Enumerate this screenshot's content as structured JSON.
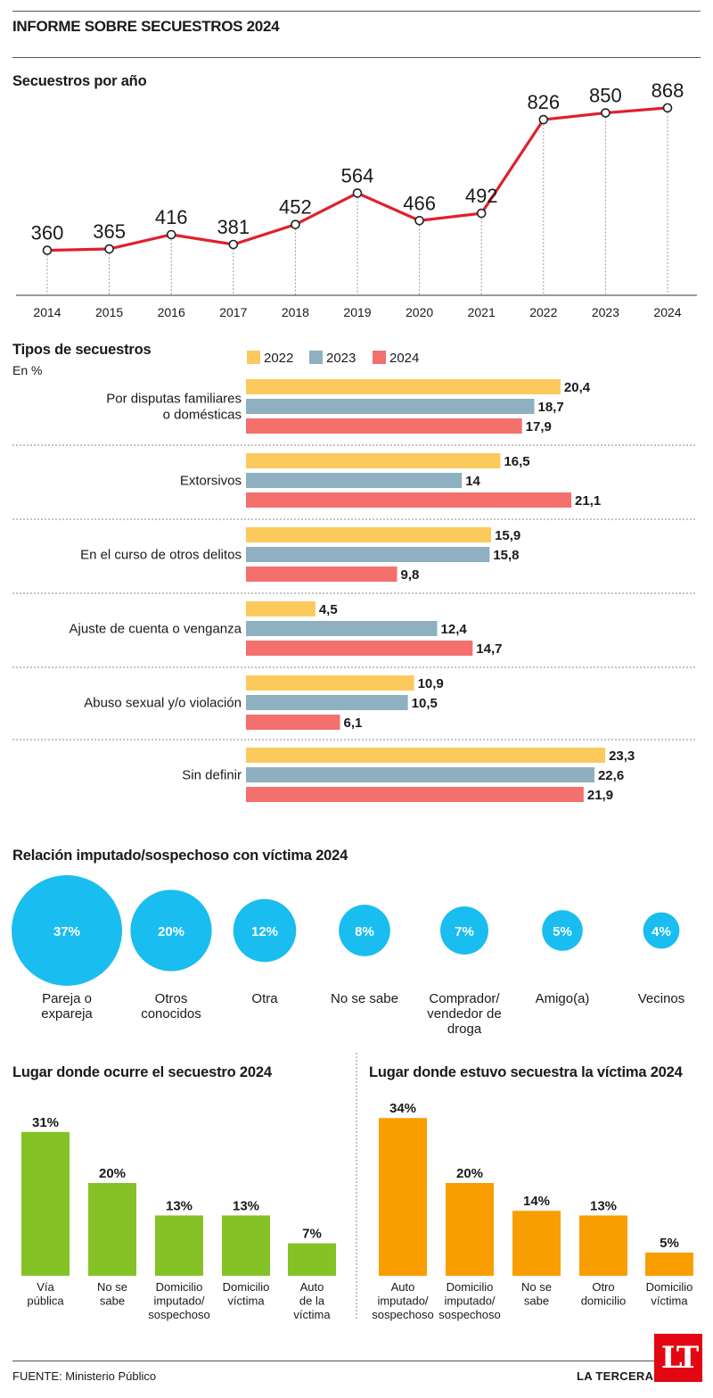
{
  "title": "INFORME SOBRE SECUESTROS 2024",
  "source": "FUENTE: Ministerio Público",
  "brand": "LA TERCERA",
  "logo_text": "LT",
  "colors": {
    "line": "#e0202e",
    "y2022": "#fcc95c",
    "y2023": "#8eb0c1",
    "y2024": "#f4706d",
    "bubble": "#19bdef",
    "green": "#84c225",
    "orange": "#f99e00"
  },
  "chart_data": [
    {
      "type": "line",
      "title": "Secuestros por año",
      "x": [
        "2014",
        "2015",
        "2016",
        "2017",
        "2018",
        "2019",
        "2020",
        "2021",
        "2022",
        "2023",
        "2024"
      ],
      "values": [
        360,
        365,
        416,
        381,
        452,
        564,
        466,
        492,
        826,
        850,
        868
      ],
      "grid": "vertical dashed lines"
    },
    {
      "type": "bar",
      "orientation": "horizontal",
      "title": "Tipos de secuestros",
      "subtitle": "En %",
      "legend": [
        "2022",
        "2023",
        "2024"
      ],
      "legend_position": "top",
      "categories": [
        [
          "Por disputas familiares",
          "o domésticas"
        ],
        [
          "Extorsivos"
        ],
        [
          "En el curso de otros delitos"
        ],
        [
          "Ajuste de cuenta o venganza"
        ],
        [
          "Abuso sexual y/o violación"
        ],
        [
          "Sin definir"
        ]
      ],
      "series": [
        {
          "name": "2022",
          "values": [
            20.4,
            16.5,
            15.9,
            4.5,
            10.9,
            23.3
          ],
          "labels": [
            "20,4",
            "16,5",
            "15,9",
            "4,5",
            "10,9",
            "23,3"
          ]
        },
        {
          "name": "2023",
          "values": [
            18.7,
            14,
            15.8,
            12.4,
            10.5,
            22.6
          ],
          "labels": [
            "18,7",
            "14",
            "15,8",
            "12,4",
            "10,5",
            "22,6"
          ]
        },
        {
          "name": "2024",
          "values": [
            17.9,
            21.1,
            9.8,
            14.7,
            6.1,
            21.9
          ],
          "labels": [
            "17,9",
            "21,1",
            "9,8",
            "14,7",
            "6,1",
            "21,9"
          ]
        }
      ]
    },
    {
      "type": "bubble",
      "title": "Relación imputado/sospechoso con víctima 2024",
      "categories": [
        [
          "Pareja o",
          "expareja"
        ],
        [
          "Otros",
          "conocidos"
        ],
        [
          "Otra"
        ],
        [
          "No se sabe"
        ],
        [
          "Comprador/",
          "vendedor de",
          "droga"
        ],
        [
          "Amigo(a)"
        ],
        [
          "Vecinos"
        ]
      ],
      "values": [
        37,
        20,
        12,
        8,
        7,
        5,
        4
      ],
      "labels": [
        "37%",
        "20%",
        "12%",
        "8%",
        "7%",
        "5%",
        "4%"
      ]
    },
    {
      "type": "bar",
      "title": "Lugar donde ocurre el secuestro 2024",
      "categories": [
        [
          "Vía",
          "pública"
        ],
        [
          "No se",
          "sabe"
        ],
        [
          "Domicilio",
          "imputado/",
          "sospechoso"
        ],
        [
          "Domicilio",
          "víctima"
        ],
        [
          "Auto",
          "de la",
          "víctima"
        ]
      ],
      "values": [
        31,
        20,
        13,
        13,
        7
      ],
      "labels": [
        "31%",
        "20%",
        "13%",
        "13%",
        "7%"
      ]
    },
    {
      "type": "bar",
      "title": "Lugar donde estuvo secuestra la víctima 2024",
      "categories": [
        [
          "Auto",
          "imputado/",
          "sospechoso"
        ],
        [
          "Domicilio",
          "imputado/",
          "sospechoso"
        ],
        [
          "No se",
          "sabe"
        ],
        [
          "Otro",
          "domicilio"
        ],
        [
          "Domicilio",
          "víctima"
        ]
      ],
      "values": [
        34,
        20,
        14,
        13,
        5
      ],
      "labels": [
        "34%",
        "20%",
        "14%",
        "13%",
        "5%"
      ]
    }
  ]
}
